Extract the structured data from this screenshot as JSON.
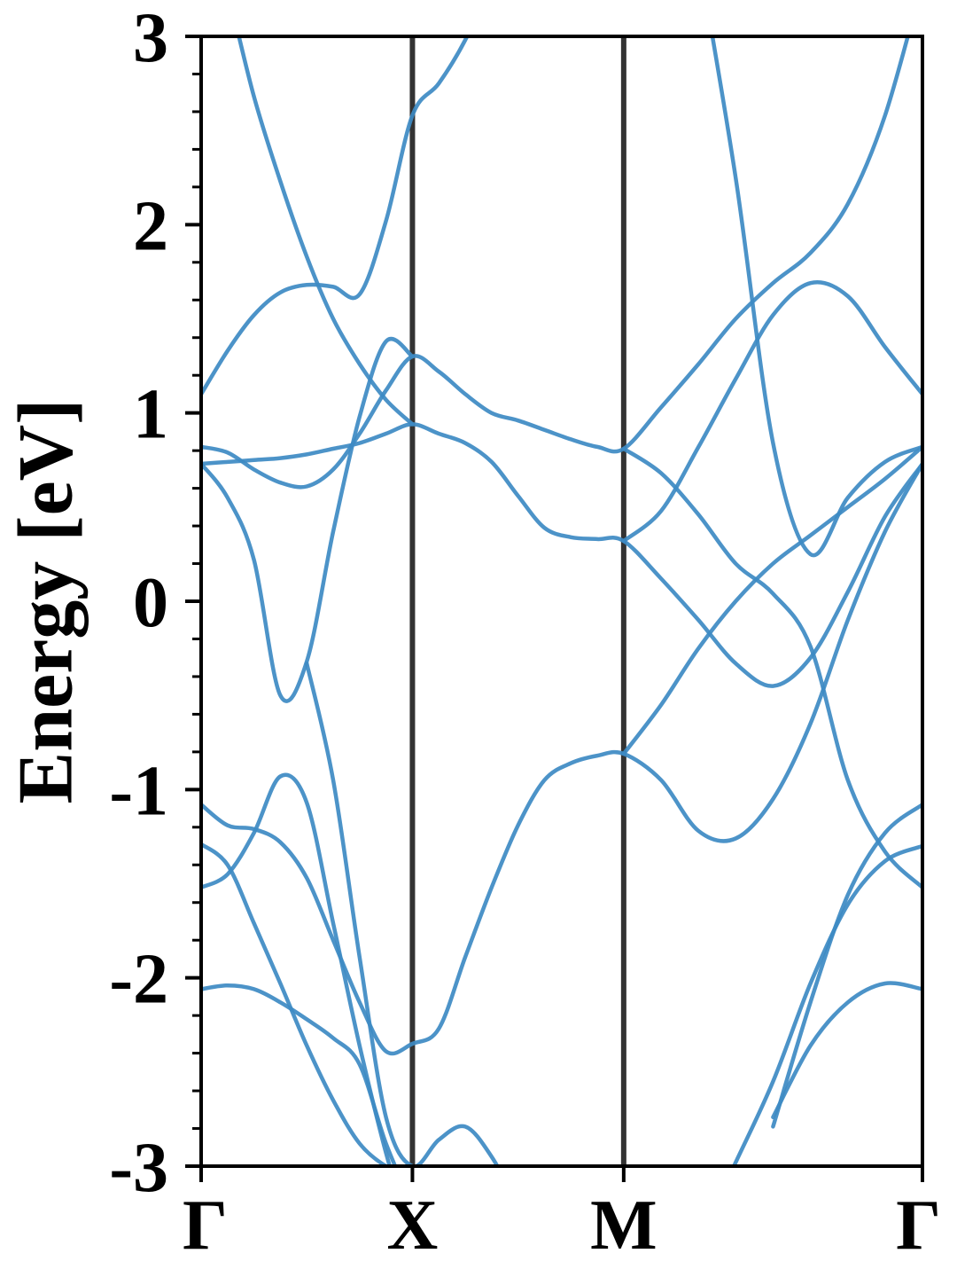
{
  "chart_data": {
    "type": "line",
    "ylabel": "Energy [eV]",
    "x": [
      0,
      0.125,
      0.25,
      0.375,
      0.5,
      0.625,
      0.75,
      0.875,
      1,
      1.125,
      1.25,
      1.375,
      1.5,
      1.625,
      1.75,
      1.875,
      2,
      2.177,
      2.354,
      2.53,
      2.707,
      2.884,
      3.061,
      3.237,
      3.414
    ],
    "xlim": [
      0,
      3.414
    ],
    "xticks": [
      {
        "value": 0,
        "label": "Γ"
      },
      {
        "value": 1,
        "label": "X"
      },
      {
        "value": 2,
        "label": "M"
      },
      {
        "value": 3.414,
        "label": "Γ"
      }
    ],
    "ylim": [
      -3,
      3
    ],
    "yticks": [
      -3,
      -2,
      -1,
      0,
      1,
      2,
      3
    ],
    "y_minor_step": 0.2,
    "xgrid": true,
    "color": "#3d8ac3",
    "series": [
      {
        "values": [
          3.71,
          3.24,
          2.68,
          2.23,
          1.83,
          1.5,
          1.26,
          1.07,
          0.94,
          null,
          null,
          null,
          null,
          null,
          null,
          null,
          null,
          null,
          null,
          null,
          null,
          null,
          null,
          null,
          null
        ]
      },
      {
        "values": [
          1.1,
          1.33,
          1.52,
          1.64,
          1.68,
          1.67,
          1.63,
          2.02,
          2.58,
          2.75,
          2.98,
          3.29,
          3.6,
          null,
          null,
          null,
          null,
          null,
          null,
          null,
          null,
          null,
          null,
          null,
          null
        ]
      },
      {
        "values": [
          0.73,
          0.74,
          0.75,
          0.76,
          0.78,
          0.81,
          0.84,
          0.89,
          0.94,
          0.89,
          0.84,
          0.74,
          0.56,
          0.39,
          0.34,
          0.33,
          0.32,
          0.12,
          -0.1,
          -0.33,
          -0.45,
          -0.3,
          0.05,
          0.45,
          0.73
        ]
      },
      {
        "values": [
          0.82,
          0.79,
          0.7,
          0.63,
          0.61,
          0.7,
          0.89,
          1.12,
          1.3,
          1.22,
          1.1,
          1.0,
          0.96,
          0.91,
          0.86,
          0.82,
          0.81,
          1.03,
          1.26,
          1.5,
          1.69,
          1.85,
          2.11,
          2.58,
          3.29
        ]
      },
      {
        "values": [
          0.73,
          0.55,
          0.22,
          -0.5,
          -0.32,
          0.37,
          0.98,
          1.38,
          1.3,
          null,
          null,
          null,
          null,
          null,
          null,
          null,
          null,
          null,
          null,
          null,
          null,
          null,
          null,
          null,
          null
        ]
      },
      {
        "values": [
          -1.52,
          -1.45,
          -1.23,
          -0.93,
          -1.07,
          -1.71,
          -2.36,
          -2.93,
          -3.4,
          null,
          null,
          null,
          null,
          null,
          null,
          null,
          null,
          null,
          null,
          null,
          null,
          null,
          null,
          null,
          null
        ]
      },
      {
        "values": [
          null,
          null,
          null,
          null,
          -0.33,
          -0.95,
          -1.89,
          -2.74,
          -3.0,
          -2.86,
          -2.79,
          -2.95,
          -3.21,
          null,
          null,
          null,
          null,
          null,
          null,
          null,
          null,
          null,
          null,
          null,
          null
        ]
      },
      {
        "values": [
          -1.08,
          -1.19,
          -1.21,
          -1.28,
          -1.47,
          -1.8,
          -2.13,
          -2.39,
          -2.35,
          -2.27,
          -1.89,
          -1.52,
          -1.19,
          -0.95,
          -0.86,
          -0.82,
          -0.81,
          -0.95,
          -1.22,
          -1.26,
          -1.05,
          -0.65,
          -0.1,
          0.37,
          0.73
        ]
      },
      {
        "values": [
          -1.29,
          -1.4,
          -1.71,
          -2.03,
          -2.36,
          -2.65,
          -2.88,
          -3.0,
          -3.05,
          null,
          null,
          null,
          null,
          null,
          null,
          null,
          null,
          null,
          null,
          null,
          null,
          null,
          null,
          null,
          null
        ]
      },
      {
        "values": [
          -2.06,
          -2.04,
          -2.06,
          -2.13,
          -2.22,
          -2.32,
          -2.46,
          -2.88,
          -3.21,
          null,
          null,
          null,
          null,
          null,
          null,
          null,
          null,
          null,
          null,
          null,
          null,
          null,
          null,
          null,
          null
        ]
      },
      {
        "values": [
          null,
          null,
          null,
          null,
          null,
          null,
          null,
          null,
          null,
          null,
          null,
          null,
          null,
          null,
          null,
          null,
          -0.81,
          -0.55,
          -0.25,
          0.0,
          0.2,
          0.35,
          0.5,
          0.65,
          0.82
        ]
      },
      {
        "values": [
          null,
          null,
          null,
          null,
          null,
          null,
          null,
          null,
          null,
          null,
          null,
          null,
          null,
          null,
          null,
          null,
          null,
          null,
          3.43,
          2.25,
          0.84,
          0.25,
          0.55,
          0.74,
          0.82
        ]
      },
      {
        "values": [
          null,
          null,
          null,
          null,
          null,
          null,
          null,
          null,
          null,
          null,
          null,
          null,
          null,
          null,
          null,
          null,
          0.32,
          0.48,
          0.82,
          1.18,
          1.52,
          1.69,
          1.62,
          1.35,
          1.1
        ]
      },
      {
        "values": [
          null,
          null,
          null,
          null,
          null,
          null,
          null,
          null,
          null,
          null,
          null,
          null,
          null,
          null,
          null,
          null,
          0.81,
          0.68,
          0.46,
          0.2,
          0.04,
          -0.24,
          -0.95,
          -1.33,
          -1.52
        ]
      },
      {
        "values": [
          null,
          null,
          null,
          null,
          null,
          null,
          null,
          null,
          null,
          null,
          null,
          null,
          null,
          null,
          null,
          null,
          null,
          null,
          -3.4,
          -2.98,
          -2.55,
          -2.03,
          -1.61,
          -1.38,
          -1.3
        ]
      },
      {
        "values": [
          null,
          null,
          null,
          null,
          null,
          null,
          null,
          null,
          null,
          null,
          null,
          null,
          null,
          null,
          null,
          null,
          null,
          null,
          null,
          null,
          -2.79,
          -2.13,
          -1.56,
          -1.23,
          -1.08
        ]
      },
      {
        "values": [
          null,
          null,
          null,
          null,
          null,
          null,
          null,
          null,
          null,
          null,
          null,
          null,
          null,
          null,
          null,
          null,
          null,
          null,
          null,
          null,
          -2.74,
          -2.36,
          -2.13,
          -2.03,
          -2.06
        ]
      }
    ]
  }
}
